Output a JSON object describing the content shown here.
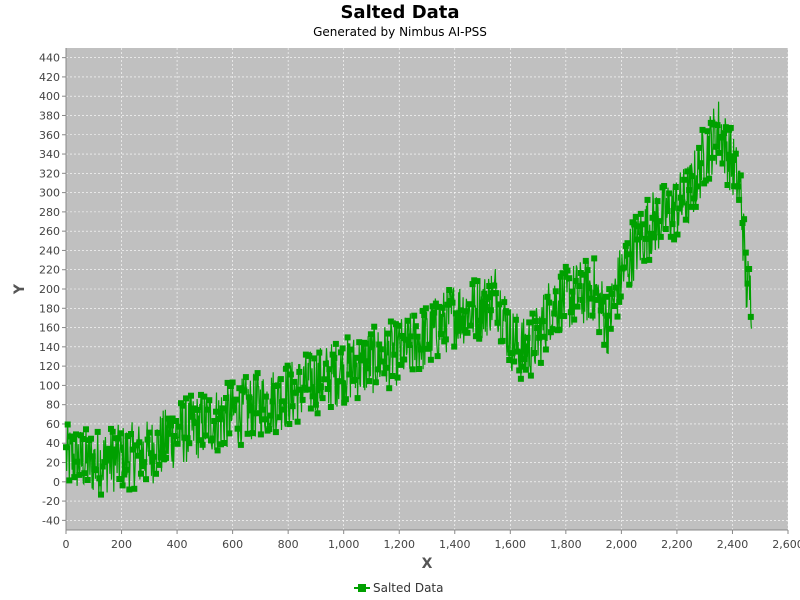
{
  "chart_data": {
    "type": "line",
    "title": "Salted Data",
    "subtitle": "Generated by Nimbus AI-PSS",
    "xlabel": "X",
    "ylabel": "Y",
    "xlim": [
      0,
      2600
    ],
    "ylim": [
      -50,
      450
    ],
    "xticks": [
      0,
      200,
      400,
      600,
      800,
      1000,
      1200,
      1400,
      1600,
      1800,
      2000,
      2200,
      2400,
      2600
    ],
    "xtick_labels": [
      "0",
      "200",
      "400",
      "600",
      "800",
      "1,000",
      "1,200",
      "1,400",
      "1,600",
      "1,800",
      "2,000",
      "2,200",
      "2,400",
      "2,600"
    ],
    "yticks": [
      -40,
      -20,
      0,
      20,
      40,
      60,
      80,
      100,
      120,
      140,
      160,
      180,
      200,
      220,
      240,
      260,
      280,
      300,
      320,
      340,
      360,
      380,
      400,
      420,
      440
    ],
    "grid": true,
    "legend_position": "bottom",
    "colors": {
      "series": "#00a000",
      "plot_bg": "#c0c0c0",
      "grid": "#ffffff"
    },
    "series": [
      {
        "name": "Salted Data",
        "noise_range": 35,
        "x": [
          0,
          100,
          200,
          300,
          400,
          500,
          600,
          700,
          800,
          900,
          1000,
          1100,
          1200,
          1300,
          1400,
          1500,
          1550,
          1600,
          1650,
          1700,
          1750,
          1800,
          1850,
          1900,
          1950,
          2000,
          2050,
          2100,
          2150,
          2200,
          2250,
          2300,
          2350,
          2400,
          2430,
          2450,
          2470
        ],
        "values": [
          25,
          20,
          25,
          30,
          50,
          60,
          70,
          80,
          90,
          105,
          115,
          125,
          135,
          150,
          175,
          180,
          195,
          150,
          135,
          150,
          185,
          190,
          195,
          200,
          165,
          215,
          245,
          265,
          275,
          285,
          300,
          340,
          365,
          330,
          300,
          205,
          190
        ]
      }
    ]
  }
}
